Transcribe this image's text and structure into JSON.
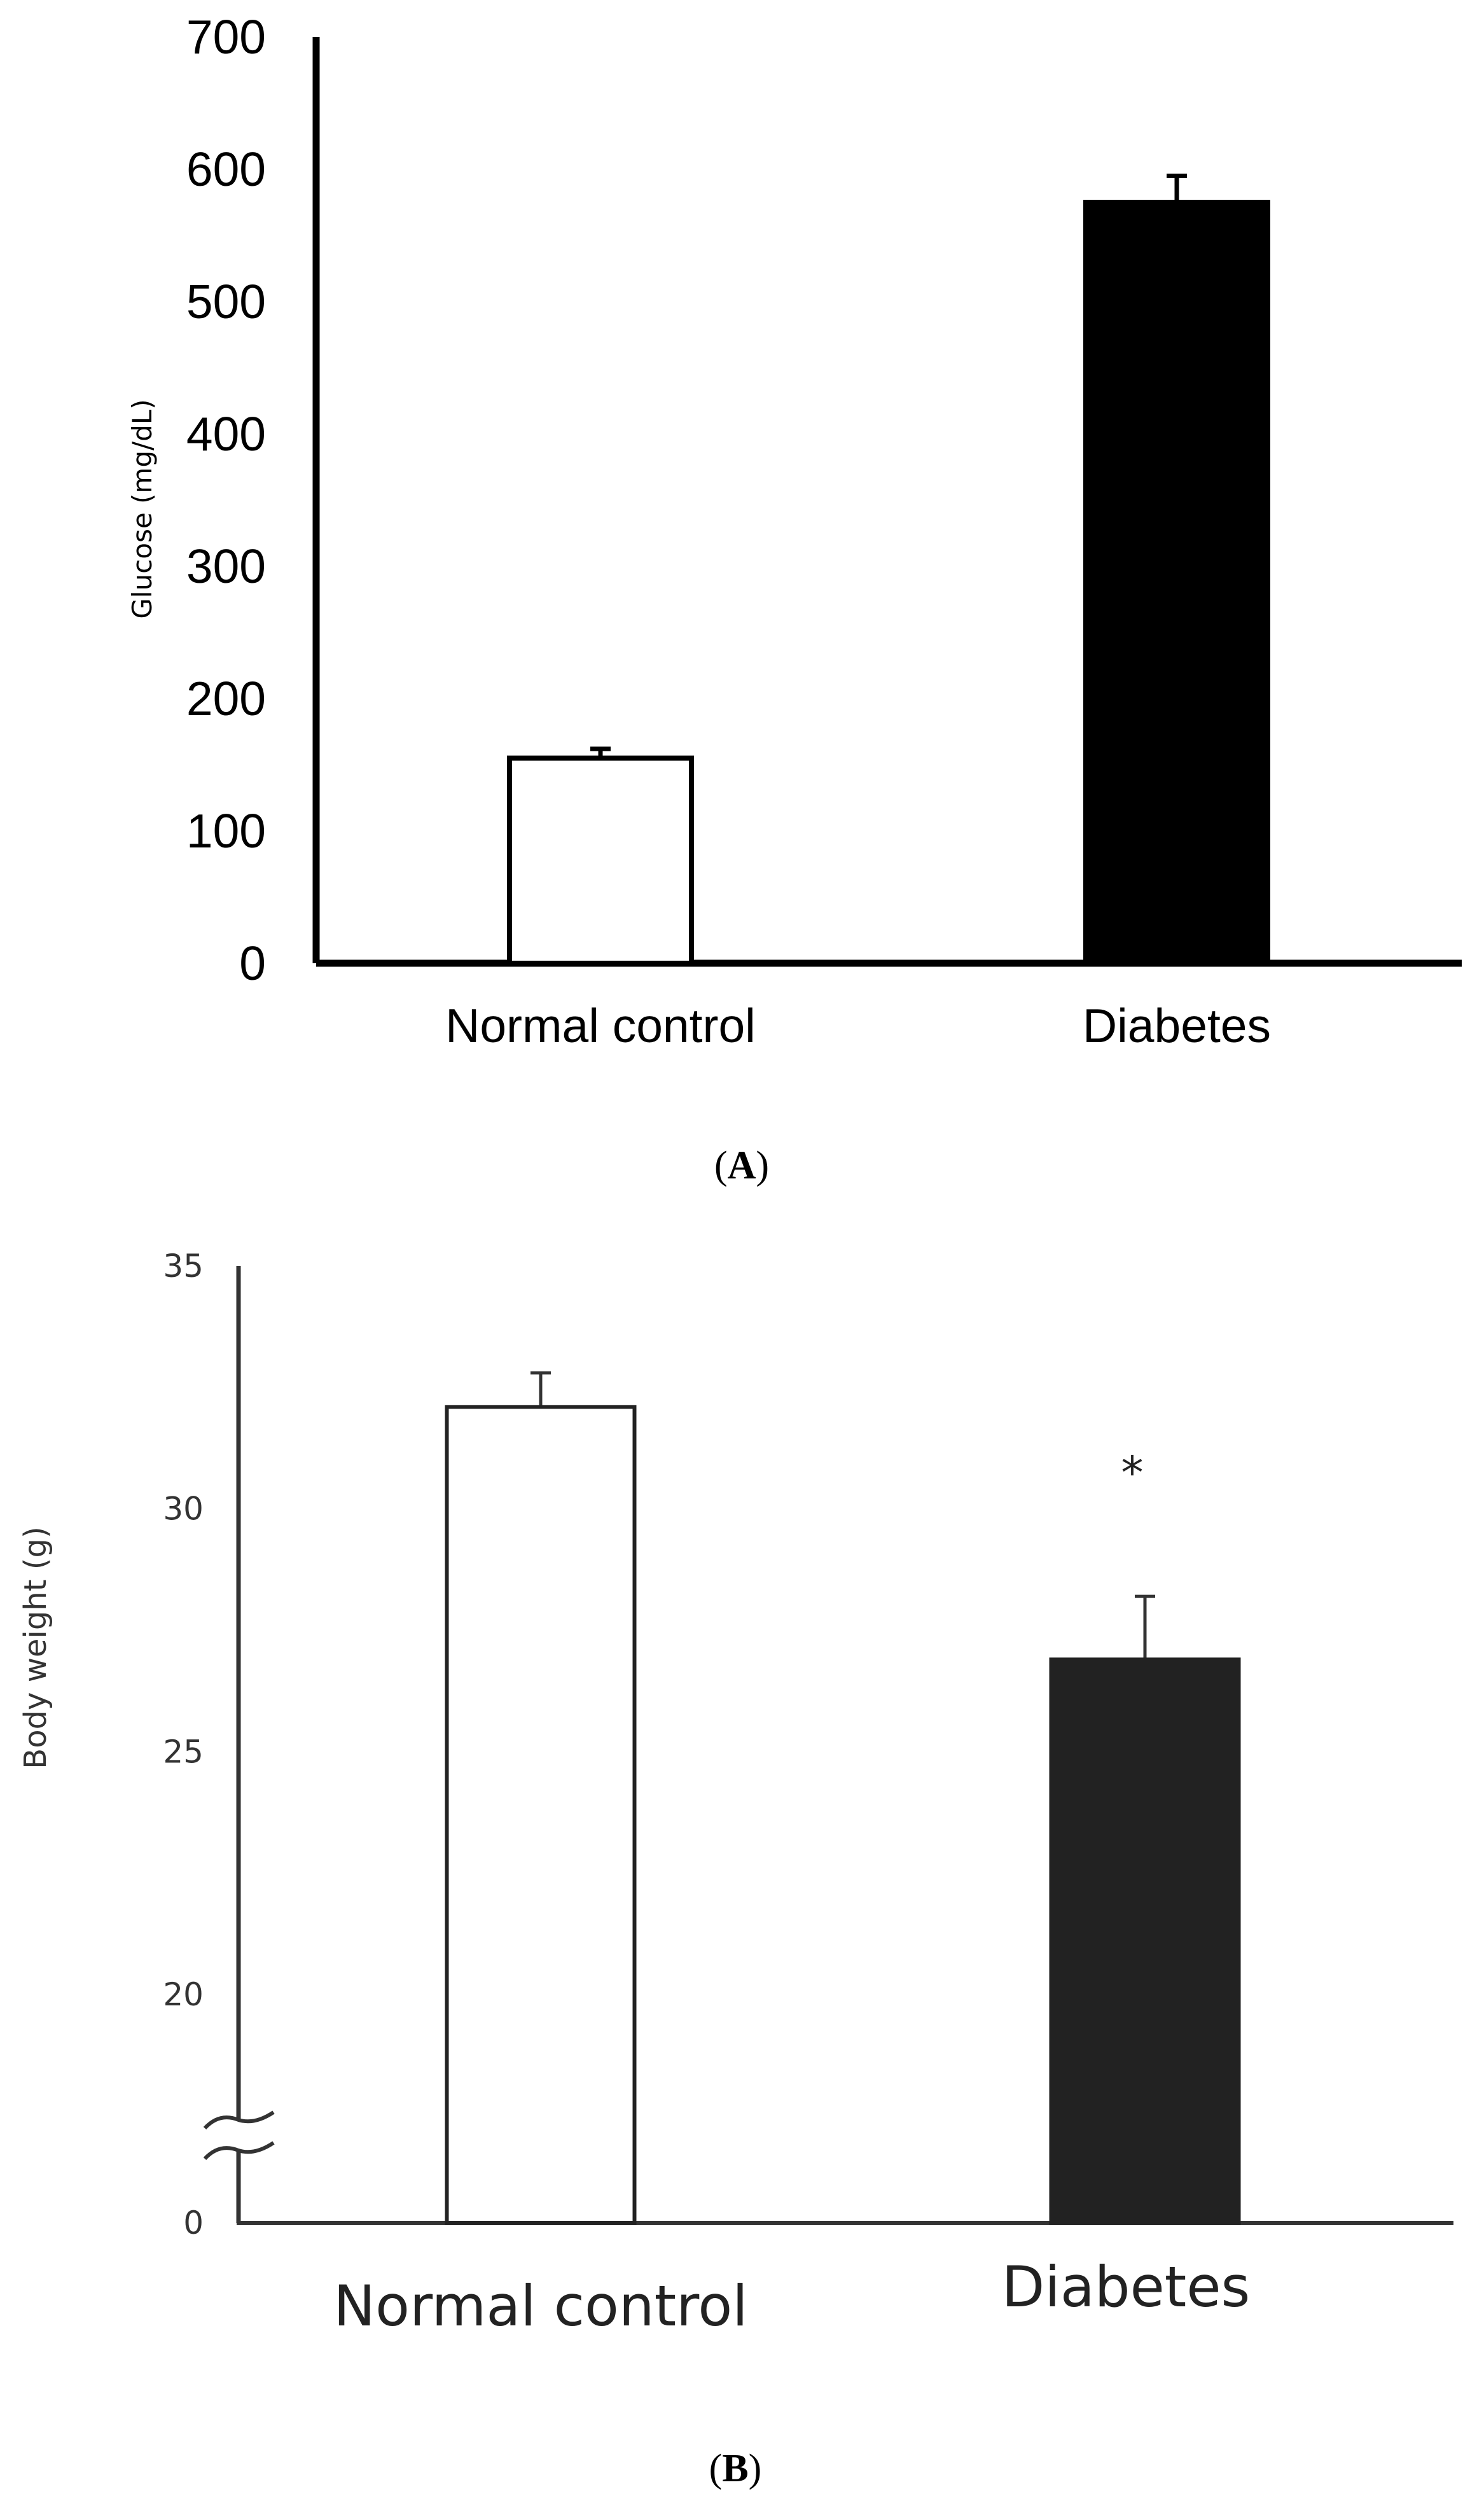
{
  "chart_data": [
    {
      "panel": "(A)",
      "panel_letter": "A",
      "type": "bar",
      "title": "",
      "xlabel": "",
      "ylabel": "Glucose (mg/dL)",
      "categories": [
        "Normal control",
        "Diabetes"
      ],
      "values": [
        155,
        575
      ],
      "errors": [
        7,
        20
      ],
      "bar_colors": [
        "#ffffff",
        "#000000"
      ],
      "ylim": [
        0,
        700
      ],
      "yticks": [
        0,
        100,
        200,
        300,
        400,
        500,
        600,
        700
      ],
      "grid": false,
      "legend": "none"
    },
    {
      "panel": "(B)",
      "panel_letter": "B",
      "type": "bar",
      "title": "",
      "xlabel": "",
      "ylabel": "Body weight (g)",
      "categories": [
        "Normal control",
        "Diabetes"
      ],
      "values": [
        32.1,
        26.9
      ],
      "errors": [
        0.7,
        1.3
      ],
      "bar_colors": [
        "#ffffff",
        "#222222"
      ],
      "ylim": [
        0,
        35
      ],
      "yticks": [
        0,
        20,
        25,
        30,
        35
      ],
      "axis_break": [
        0,
        20
      ],
      "grid": false,
      "legend": "none",
      "annotations": [
        {
          "category": "Diabetes",
          "text": "*"
        }
      ]
    }
  ]
}
